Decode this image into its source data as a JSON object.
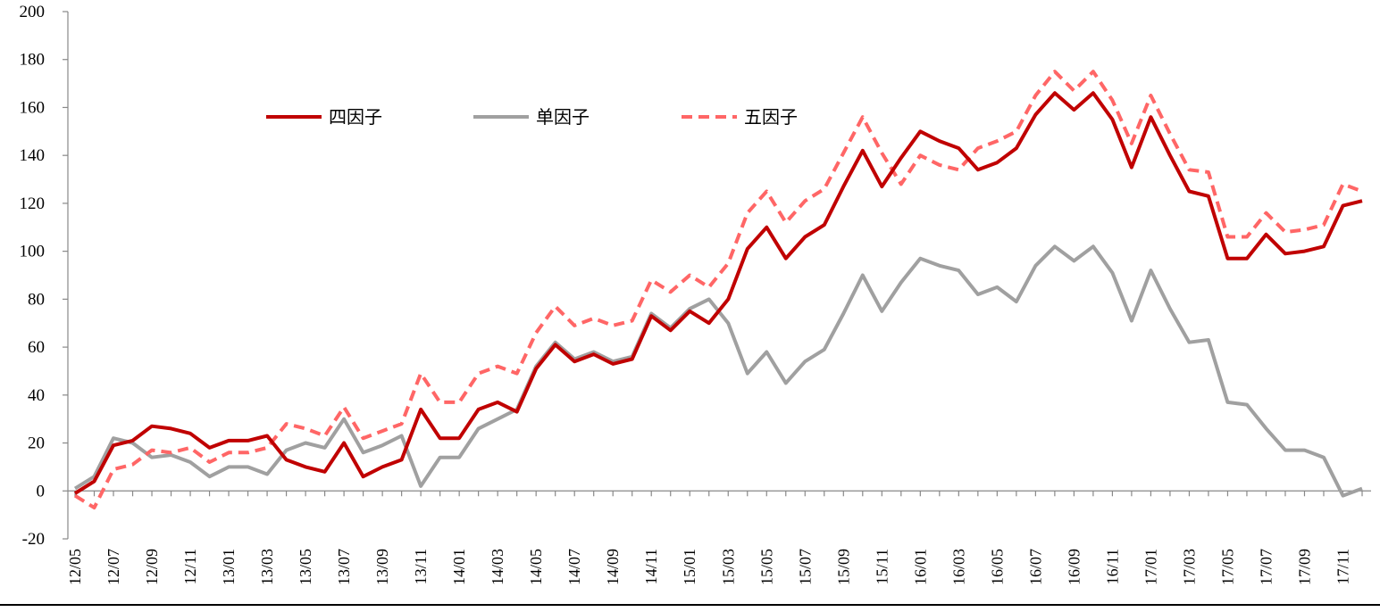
{
  "chart_data": {
    "type": "line",
    "title": "",
    "xlabel": "",
    "ylabel": "",
    "ylim": [
      -20,
      200
    ],
    "yticks": [
      -20,
      0,
      20,
      40,
      60,
      80,
      100,
      120,
      140,
      160,
      180,
      200
    ],
    "legend_position": "top-left",
    "grid": false,
    "x": [
      "12/05",
      "12/06",
      "12/07",
      "12/08",
      "12/09",
      "12/10",
      "12/11",
      "12/12",
      "13/01",
      "13/02",
      "13/03",
      "13/04",
      "13/05",
      "13/06",
      "13/07",
      "13/08",
      "13/09",
      "13/10",
      "13/11",
      "13/12",
      "14/01",
      "14/02",
      "14/03",
      "14/04",
      "14/05",
      "14/06",
      "14/07",
      "14/08",
      "14/09",
      "14/10",
      "14/11",
      "14/12",
      "15/01",
      "15/02",
      "15/03",
      "15/04",
      "15/05",
      "15/06",
      "15/07",
      "15/08",
      "15/09",
      "15/10",
      "15/11",
      "15/12",
      "16/01",
      "16/02",
      "16/03",
      "16/04",
      "16/05",
      "16/06",
      "16/07",
      "16/08",
      "16/09",
      "16/10",
      "16/11",
      "16/12",
      "17/01",
      "17/02",
      "17/03",
      "17/04",
      "17/05",
      "17/06",
      "17/07",
      "17/08",
      "17/09",
      "17/10",
      "17/11",
      "17/12"
    ],
    "x_tick_labels": [
      "12/05",
      "12/07",
      "12/09",
      "12/11",
      "13/01",
      "13/03",
      "13/05",
      "13/07",
      "13/09",
      "13/11",
      "14/01",
      "14/03",
      "14/05",
      "14/07",
      "14/09",
      "14/11",
      "15/01",
      "15/03",
      "15/05",
      "15/07",
      "15/09",
      "15/11",
      "16/01",
      "16/03",
      "16/05",
      "16/07",
      "16/09",
      "16/11",
      "17/01",
      "17/03",
      "17/05",
      "17/07",
      "17/09",
      "17/11"
    ],
    "series": [
      {
        "name": "四因子",
        "color": "#C00000",
        "style": "solid",
        "values": [
          -1,
          4,
          19,
          21,
          27,
          26,
          24,
          18,
          21,
          21,
          23,
          13,
          10,
          8,
          20,
          6,
          10,
          13,
          34,
          22,
          22,
          34,
          37,
          33,
          51,
          61,
          54,
          57,
          53,
          55,
          73,
          67,
          75,
          70,
          80,
          101,
          110,
          97,
          106,
          111,
          127,
          142,
          127,
          139,
          150,
          146,
          143,
          134,
          137,
          143,
          157,
          166,
          159,
          166,
          155,
          135,
          156,
          140,
          125,
          123,
          97,
          97,
          107,
          99,
          100,
          102,
          119,
          121
        ]
      },
      {
        "name": "单因子",
        "color": "#A0A0A0",
        "style": "solid",
        "values": [
          1,
          6,
          22,
          20,
          14,
          15,
          12,
          6,
          10,
          10,
          7,
          17,
          20,
          18,
          30,
          16,
          19,
          23,
          2,
          14,
          14,
          26,
          30,
          34,
          52,
          62,
          55,
          58,
          54,
          56,
          74,
          68,
          76,
          80,
          70,
          49,
          58,
          45,
          54,
          59,
          74,
          90,
          75,
          87,
          97,
          94,
          92,
          82,
          85,
          79,
          94,
          102,
          96,
          102,
          91,
          71,
          92,
          76,
          62,
          63,
          37,
          36,
          26,
          17,
          17,
          14,
          -2,
          1
        ]
      },
      {
        "name": "五因子",
        "color": "#FF6666",
        "style": "dashed",
        "values": [
          -2,
          -7,
          9,
          11,
          17,
          16,
          18,
          12,
          16,
          16,
          18,
          28,
          26,
          23,
          35,
          22,
          25,
          28,
          49,
          37,
          37,
          49,
          52,
          49,
          66,
          77,
          69,
          72,
          69,
          71,
          88,
          83,
          90,
          85,
          95,
          116,
          125,
          112,
          121,
          126,
          141,
          156,
          141,
          128,
          140,
          136,
          134,
          143,
          146,
          150,
          165,
          175,
          167,
          175,
          163,
          145,
          165,
          149,
          134,
          133,
          106,
          106,
          116,
          108,
          109,
          111,
          128,
          125
        ]
      }
    ]
  }
}
